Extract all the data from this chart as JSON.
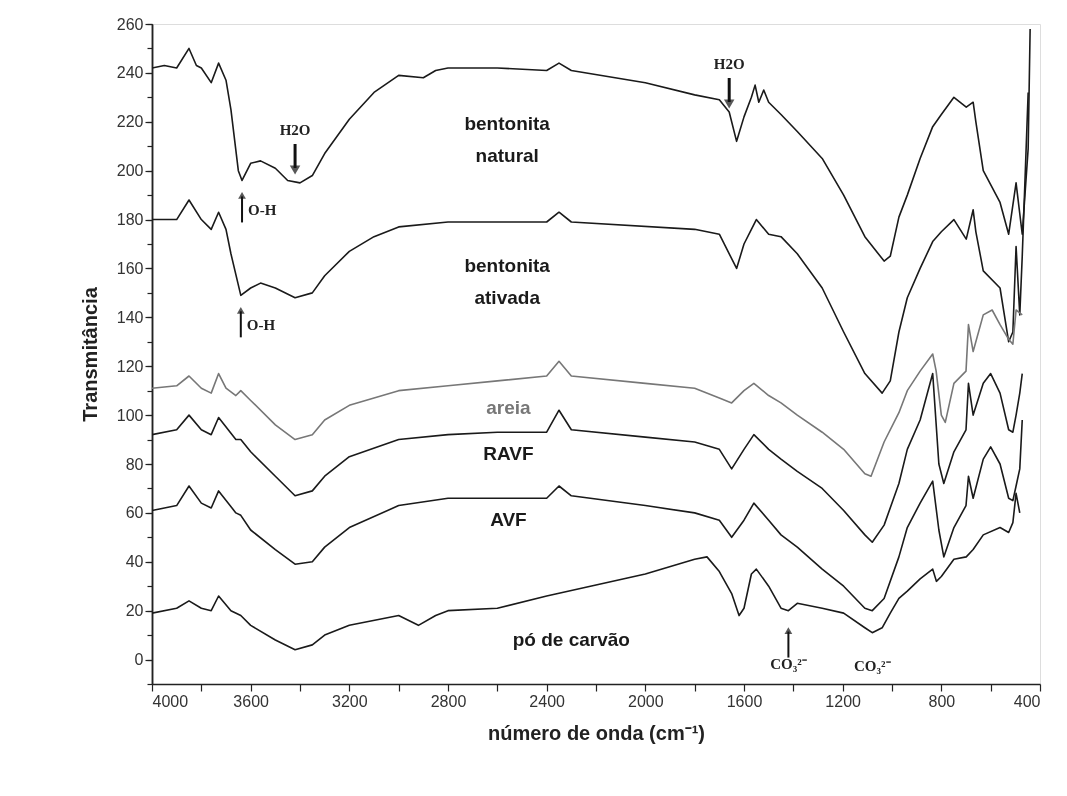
{
  "chart_data": {
    "type": "line",
    "xlabel": "número de onda (cm⁻¹)",
    "ylabel": "Transmitância",
    "xlim": [
      4000,
      400
    ],
    "ylim": [
      -10,
      260
    ],
    "xticks": [
      4000,
      {
        "value": 3800,
        "label": null
      },
      3600,
      {
        "value": 3400,
        "label": null
      },
      3200,
      {
        "value": 3000,
        "label": null
      },
      2800,
      {
        "value": 2600,
        "label": null
      },
      2400,
      {
        "value": 2200,
        "label": null
      },
      2000,
      {
        "value": 1800,
        "label": null
      },
      1600,
      {
        "value": 1400,
        "label": null
      },
      1200,
      {
        "value": 1000,
        "label": null
      },
      800,
      {
        "value": 600,
        "label": null
      },
      400
    ],
    "yticks": [
      {
        "value": -10,
        "label": null
      },
      0,
      {
        "value": 10,
        "label": null
      },
      20,
      {
        "value": 30,
        "label": null
      },
      40,
      {
        "value": 50,
        "label": null
      },
      60,
      {
        "value": 70,
        "label": null
      },
      80,
      {
        "value": 90,
        "label": null
      },
      100,
      {
        "value": 110,
        "label": null
      },
      120,
      {
        "value": 130,
        "label": null
      },
      140,
      {
        "value": 150,
        "label": null
      },
      160,
      {
        "value": 170,
        "label": null
      },
      180,
      {
        "value": 190,
        "label": null
      },
      200,
      {
        "value": 210,
        "label": null
      },
      220,
      {
        "value": 230,
        "label": null
      },
      240,
      {
        "value": 250,
        "label": null
      },
      260
    ],
    "series": [
      {
        "name": "bentonita natural",
        "color": "#1a1a1a",
        "x": [
          4000,
          3950,
          3900,
          3850,
          3820,
          3800,
          3760,
          3730,
          3700,
          3680,
          3650,
          3635,
          3600,
          3560,
          3500,
          3450,
          3400,
          3350,
          3300,
          3200,
          3100,
          3000,
          2900,
          2850,
          2800,
          2600,
          2400,
          2350,
          2300,
          2000,
          1800,
          1700,
          1660,
          1630,
          1600,
          1570,
          1555,
          1540,
          1520,
          1500,
          1450,
          1384,
          1283,
          1196,
          1110,
          1032,
          1007,
          972,
          938,
          886,
          835,
          800,
          749,
          699,
          671,
          660,
          630,
          562,
          527,
          497,
          472,
          448,
          440
        ],
        "values": [
          242,
          243,
          242,
          250,
          243,
          242,
          236,
          244,
          237,
          225,
          200,
          196,
          203,
          204,
          201,
          196,
          195,
          198,
          207,
          221,
          232,
          239,
          238,
          241,
          242,
          242,
          241,
          244,
          241,
          236,
          231,
          229,
          224,
          212,
          222,
          230,
          235,
          228,
          233,
          228,
          223,
          216,
          205,
          190,
          173,
          163,
          165,
          181,
          190,
          205,
          218,
          223,
          230,
          226,
          228,
          220,
          200,
          187,
          174,
          195,
          174,
          209,
          258
        ]
      },
      {
        "name": "bentonita ativada",
        "color": "#1a1a1a",
        "x": [
          4000,
          3900,
          3850,
          3800,
          3760,
          3730,
          3700,
          3680,
          3640,
          3600,
          3560,
          3500,
          3420,
          3350,
          3300,
          3200,
          3100,
          3000,
          2800,
          2400,
          2350,
          2300,
          1800,
          1700,
          1630,
          1600,
          1570,
          1550,
          1500,
          1450,
          1384,
          1283,
          1196,
          1110,
          1040,
          1007,
          972,
          938,
          886,
          835,
          800,
          749,
          699,
          671,
          660,
          630,
          562,
          527,
          510,
          497,
          482,
          472,
          448
        ],
        "values": [
          180,
          180,
          188,
          180,
          176,
          183,
          176,
          166,
          149,
          152,
          154,
          152,
          148,
          150,
          157,
          167,
          173,
          177,
          179,
          179,
          183,
          179,
          176,
          174,
          160,
          170,
          176,
          180,
          174,
          173,
          166,
          152,
          134,
          117,
          109,
          114,
          134,
          148,
          160,
          171,
          175,
          180,
          172,
          184,
          175,
          159,
          152,
          130,
          134,
          169,
          141,
          165,
          232
        ]
      },
      {
        "name": "areia",
        "color": "#777777",
        "x": [
          4000,
          3900,
          3850,
          3800,
          3760,
          3730,
          3700,
          3660,
          3640,
          3600,
          3500,
          3420,
          3350,
          3300,
          3200,
          3000,
          2800,
          2600,
          2400,
          2350,
          2300,
          2000,
          1800,
          1700,
          1650,
          1600,
          1560,
          1500,
          1450,
          1384,
          1283,
          1196,
          1110,
          1085,
          1032,
          972,
          938,
          886,
          835,
          821,
          800,
          784,
          749,
          700,
          690,
          671,
          630,
          594,
          562,
          527,
          510,
          497,
          472
        ],
        "values": [
          111,
          112,
          116,
          111,
          109,
          117,
          111,
          108,
          110,
          106,
          96,
          90,
          92,
          98,
          104,
          110,
          112,
          114,
          116,
          122,
          116,
          113,
          111,
          107,
          105,
          110,
          113,
          108,
          105,
          100,
          93,
          86,
          76,
          75,
          89,
          101,
          110,
          118,
          125,
          118,
          100,
          97,
          113,
          118,
          137,
          126,
          141,
          143,
          137,
          131,
          129,
          143,
          141
        ]
      },
      {
        "name": "RAVF",
        "color": "#1a1a1a",
        "x": [
          4000,
          3900,
          3850,
          3800,
          3760,
          3730,
          3660,
          3640,
          3600,
          3500,
          3420,
          3350,
          3300,
          3200,
          3000,
          2800,
          2600,
          2400,
          2350,
          2300,
          2000,
          1800,
          1700,
          1650,
          1600,
          1560,
          1500,
          1450,
          1384,
          1283,
          1196,
          1110,
          1080,
          1032,
          972,
          938,
          886,
          835,
          810,
          790,
          749,
          700,
          690,
          671,
          630,
          600,
          562,
          527,
          510,
          497,
          482,
          472
        ],
        "values": [
          92,
          94,
          100,
          94,
          92,
          99,
          90,
          90,
          85,
          75,
          67,
          69,
          75,
          83,
          90,
          92,
          93,
          93,
          102,
          94,
          91,
          89,
          86,
          78,
          86,
          92,
          86,
          82,
          77,
          70,
          61,
          51,
          48,
          55,
          72,
          86,
          98,
          117,
          80,
          72,
          85,
          94,
          113,
          100,
          113,
          117,
          109,
          94,
          93,
          100,
          109,
          117
        ]
      },
      {
        "name": "AVF",
        "color": "#1a1a1a",
        "x": [
          4000,
          3900,
          3850,
          3800,
          3760,
          3730,
          3660,
          3640,
          3600,
          3500,
          3420,
          3350,
          3300,
          3200,
          3000,
          2800,
          2600,
          2400,
          2350,
          2300,
          2000,
          1800,
          1700,
          1650,
          1600,
          1560,
          1500,
          1450,
          1384,
          1283,
          1196,
          1110,
          1080,
          1032,
          972,
          938,
          886,
          835,
          810,
          790,
          749,
          700,
          690,
          671,
          630,
          600,
          562,
          527,
          510,
          497,
          482,
          472
        ],
        "values": [
          61,
          63,
          71,
          64,
          62,
          69,
          60,
          59,
          53,
          45,
          39,
          40,
          46,
          54,
          63,
          66,
          66,
          66,
          71,
          67,
          63,
          60,
          57,
          50,
          57,
          64,
          57,
          51,
          46,
          37,
          30,
          21,
          20,
          25,
          42,
          54,
          64,
          73,
          53,
          42,
          54,
          63,
          75,
          66,
          82,
          87,
          80,
          66,
          65,
          71,
          78,
          98
        ]
      },
      {
        "name": "pó de carvão",
        "color": "#1a1a1a",
        "x": [
          4000,
          3900,
          3850,
          3800,
          3760,
          3730,
          3680,
          3640,
          3600,
          3500,
          3420,
          3350,
          3300,
          3200,
          3000,
          2920,
          2850,
          2800,
          2600,
          2400,
          2000,
          1800,
          1750,
          1700,
          1650,
          1620,
          1600,
          1570,
          1550,
          1500,
          1450,
          1420,
          1384,
          1283,
          1196,
          1110,
          1080,
          1040,
          1007,
          972,
          938,
          886,
          835,
          820,
          800,
          749,
          699,
          671,
          630,
          562,
          527,
          510,
          497,
          482
        ],
        "values": [
          19,
          21,
          24,
          21,
          20,
          26,
          20,
          18,
          14,
          8,
          4,
          6,
          10,
          14,
          18,
          14,
          18,
          20,
          21,
          26,
          35,
          41,
          42,
          36,
          27,
          18,
          21,
          35,
          37,
          30,
          21,
          20,
          23,
          21,
          19,
          13,
          11,
          13,
          19,
          25,
          28,
          33,
          37,
          32,
          34,
          41,
          42,
          45,
          51,
          54,
          52,
          56,
          68,
          60
        ]
      }
    ],
    "annotations": [
      {
        "text": "H2O",
        "x": 3420,
        "y": 197
      },
      {
        "text": "H2O",
        "x": 1660,
        "y": 224
      },
      {
        "text": "O-H",
        "x": 3635,
        "y": 196
      },
      {
        "text": "O-H",
        "x": 3640,
        "y": 149
      },
      {
        "text": "CO₃²⁻",
        "x": 1420,
        "y": 18
      },
      {
        "text": "CO₃²⁻",
        "x": 1080,
        "y": 9
      }
    ]
  }
}
